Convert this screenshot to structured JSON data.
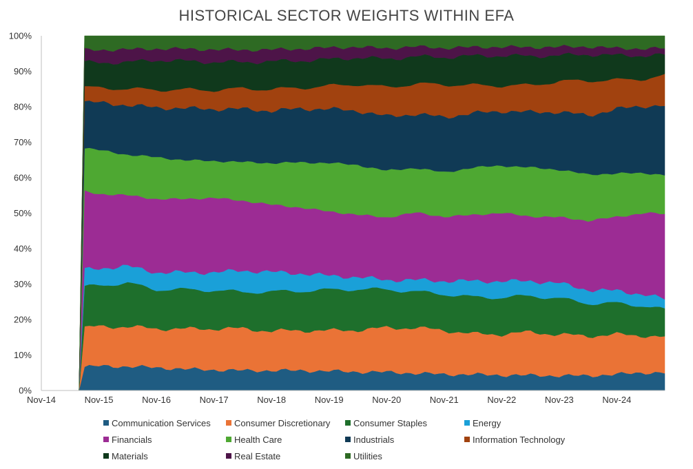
{
  "chart_data": {
    "type": "area",
    "stacked": true,
    "title": "HISTORICAL SECTOR WEIGHTS WITHIN EFA",
    "xlabel": "",
    "ylabel": "",
    "ylim": [
      0,
      100
    ],
    "yticks": [
      "0%",
      "10%",
      "20%",
      "30%",
      "40%",
      "50%",
      "60%",
      "70%",
      "80%",
      "90%",
      "100%"
    ],
    "xticks": [
      "Nov-14",
      "Nov-15",
      "Nov-16",
      "Nov-17",
      "Nov-18",
      "Nov-19",
      "Nov-20",
      "Nov-21",
      "Nov-22",
      "Nov-23",
      "Nov-24"
    ],
    "x_range": [
      "2014-11",
      "2025-09"
    ],
    "legend_position": "bottom",
    "grid": false,
    "x": [
      "2015-08",
      "2015-11",
      "2016-05",
      "2016-11",
      "2017-05",
      "2017-11",
      "2018-05",
      "2018-11",
      "2019-05",
      "2019-11",
      "2020-05",
      "2020-11",
      "2021-05",
      "2021-11",
      "2022-05",
      "2022-11",
      "2023-05",
      "2023-11",
      "2024-05",
      "2024-11",
      "2025-05",
      "2025-09"
    ],
    "series": [
      {
        "name": "Communication Services",
        "color": "#1f5c82",
        "values": [
          6.8,
          7.0,
          6.8,
          6.5,
          6.0,
          5.8,
          5.6,
          5.6,
          5.6,
          5.5,
          5.3,
          5.2,
          4.9,
          4.6,
          4.6,
          4.4,
          4.3,
          4.2,
          4.2,
          4.5,
          5.0,
          5.0
        ]
      },
      {
        "name": "Consumer Discretionary",
        "color": "#ea7336",
        "values": [
          11.2,
          11.3,
          11.2,
          11.0,
          11.2,
          11.5,
          11.7,
          11.0,
          11.2,
          11.4,
          11.8,
          12.5,
          12.8,
          12.4,
          11.6,
          11.6,
          12.2,
          11.6,
          11.2,
          11.0,
          10.2,
          10.0
        ]
      },
      {
        "name": "Consumer Staples",
        "color": "#1e6f2c",
        "values": [
          11.8,
          11.7,
          12.3,
          11.0,
          11.0,
          10.7,
          10.2,
          11.0,
          11.0,
          11.5,
          11.5,
          10.8,
          10.2,
          10.2,
          10.5,
          10.4,
          10.2,
          10.2,
          9.2,
          8.6,
          8.2,
          7.8
        ]
      },
      {
        "name": "Energy",
        "color": "#1aa0d8",
        "values": [
          5.0,
          4.8,
          4.8,
          4.8,
          4.8,
          5.0,
          6.0,
          5.5,
          4.9,
          4.0,
          3.4,
          2.7,
          3.3,
          3.7,
          4.6,
          4.6,
          4.2,
          4.3,
          3.8,
          3.5,
          3.1,
          3.0
        ]
      },
      {
        "name": "Financials",
        "color": "#9c2c94",
        "values": [
          22.5,
          21.2,
          20.0,
          20.7,
          20.5,
          20.8,
          19.5,
          18.8,
          18.4,
          18.1,
          17.6,
          17.6,
          19.0,
          18.1,
          18.9,
          19.4,
          18.2,
          18.6,
          19.5,
          20.4,
          22.6,
          24.0
        ]
      },
      {
        "name": "Health Care",
        "color": "#4ea832",
        "values": [
          12.5,
          12.5,
          11.4,
          11.8,
          10.8,
          10.3,
          10.8,
          11.6,
          12.6,
          13.7,
          14.0,
          13.2,
          12.6,
          12.5,
          13.5,
          13.4,
          13.8,
          13.4,
          13.0,
          12.0,
          11.0,
          11.0
        ]
      },
      {
        "name": "Industrials",
        "color": "#103a55",
        "values": [
          13.2,
          13.5,
          14.0,
          14.0,
          14.5,
          14.5,
          14.8,
          14.6,
          15.0,
          15.2,
          15.3,
          15.3,
          15.2,
          15.6,
          15.5,
          15.5,
          15.6,
          16.3,
          16.7,
          17.8,
          18.6,
          19.5
        ]
      },
      {
        "name": "Information Technology",
        "color": "#a1420f",
        "values": [
          4.2,
          4.2,
          4.6,
          5.0,
          5.2,
          5.3,
          5.7,
          6.0,
          5.8,
          6.5,
          7.5,
          8.2,
          8.5,
          9.2,
          8.0,
          7.2,
          7.6,
          8.6,
          9.8,
          8.0,
          7.5,
          8.5
        ]
      },
      {
        "name": "Materials",
        "color": "#10391c",
        "values": [
          7.2,
          7.2,
          7.5,
          8.4,
          8.0,
          7.8,
          7.4,
          7.8,
          7.6,
          7.5,
          7.5,
          8.0,
          7.7,
          7.7,
          8.4,
          8.5,
          8.2,
          7.3,
          7.4,
          6.8,
          6.4,
          5.8
        ]
      },
      {
        "name": "Real Estate",
        "color": "#4d1448",
        "values": [
          3.6,
          3.6,
          3.6,
          3.2,
          3.4,
          3.5,
          3.4,
          3.3,
          3.3,
          3.3,
          3.0,
          3.0,
          2.8,
          2.6,
          2.5,
          2.5,
          2.5,
          2.4,
          2.2,
          2.0,
          1.9,
          1.9
        ]
      },
      {
        "name": "Utilities",
        "color": "#2e6a23",
        "values": [
          4.0,
          4.0,
          3.8,
          3.6,
          3.6,
          3.8,
          3.9,
          3.8,
          3.6,
          3.3,
          3.1,
          3.5,
          3.0,
          3.4,
          3.2,
          3.1,
          3.2,
          3.1,
          3.0,
          3.4,
          3.5,
          3.5
        ]
      }
    ]
  }
}
